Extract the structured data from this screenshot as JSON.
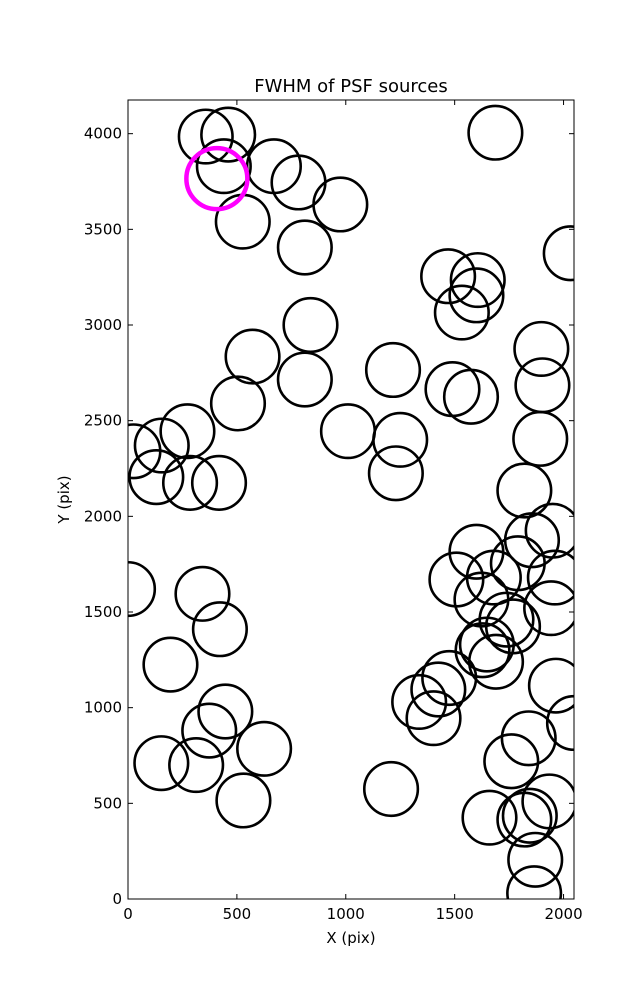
{
  "chart_data": {
    "type": "scatter",
    "title": "FWHM of PSF sources",
    "xlabel": "X (pix)",
    "ylabel": "Y (pix)",
    "xlim": [
      0,
      2048
    ],
    "ylim": [
      0,
      4176
    ],
    "xticks": [
      0,
      500,
      1000,
      1500,
      2000
    ],
    "yticks": [
      0,
      500,
      1000,
      1500,
      2000,
      2500,
      3000,
      3500,
      4000
    ],
    "grid": false,
    "marker": "open-circle",
    "colors": {
      "default": "#000000",
      "highlight": "#ff00ff"
    },
    "series": [
      {
        "marker_radius_data_units": 123,
        "points": [
          {
            "x": 357,
            "y": 3985
          },
          {
            "x": 460,
            "y": 3995
          },
          {
            "x": 1687,
            "y": 4005
          },
          {
            "x": 440,
            "y": 3830
          },
          {
            "x": 670,
            "y": 3830
          },
          {
            "x": 783,
            "y": 3745
          },
          {
            "x": 975,
            "y": 3630
          },
          {
            "x": 527,
            "y": 3540
          },
          {
            "x": 812,
            "y": 3405
          },
          {
            "x": 2033,
            "y": 3375
          },
          {
            "x": 1470,
            "y": 3255
          },
          {
            "x": 1606,
            "y": 3235
          },
          {
            "x": 1600,
            "y": 3155
          },
          {
            "x": 1533,
            "y": 3065
          },
          {
            "x": 838,
            "y": 3000
          },
          {
            "x": 1898,
            "y": 2875
          },
          {
            "x": 572,
            "y": 2835
          },
          {
            "x": 1217,
            "y": 2765
          },
          {
            "x": 812,
            "y": 2715
          },
          {
            "x": 1903,
            "y": 2685
          },
          {
            "x": 1490,
            "y": 2665
          },
          {
            "x": 1575,
            "y": 2625
          },
          {
            "x": 505,
            "y": 2590
          },
          {
            "x": 1010,
            "y": 2445
          },
          {
            "x": 273,
            "y": 2445
          },
          {
            "x": 1250,
            "y": 2400
          },
          {
            "x": 1893,
            "y": 2405
          },
          {
            "x": 155,
            "y": 2370
          },
          {
            "x": 25,
            "y": 2340
          },
          {
            "x": 1230,
            "y": 2225
          },
          {
            "x": 130,
            "y": 2205
          },
          {
            "x": 285,
            "y": 2175
          },
          {
            "x": 418,
            "y": 2175
          },
          {
            "x": 1820,
            "y": 2135
          },
          {
            "x": 1950,
            "y": 1925
          },
          {
            "x": 1855,
            "y": 1875
          },
          {
            "x": 1600,
            "y": 1815
          },
          {
            "x": 1790,
            "y": 1755
          },
          {
            "x": 1680,
            "y": 1680
          },
          {
            "x": 1960,
            "y": 1680
          },
          {
            "x": 1508,
            "y": 1670
          },
          {
            "x": 0,
            "y": 1620
          },
          {
            "x": 342,
            "y": 1595
          },
          {
            "x": 1623,
            "y": 1565
          },
          {
            "x": 1943,
            "y": 1520
          },
          {
            "x": 1738,
            "y": 1460
          },
          {
            "x": 1768,
            "y": 1425
          },
          {
            "x": 422,
            "y": 1410
          },
          {
            "x": 1648,
            "y": 1330
          },
          {
            "x": 1628,
            "y": 1300
          },
          {
            "x": 1690,
            "y": 1240
          },
          {
            "x": 195,
            "y": 1225
          },
          {
            "x": 1475,
            "y": 1155
          },
          {
            "x": 1965,
            "y": 1115
          },
          {
            "x": 1425,
            "y": 1095
          },
          {
            "x": 1337,
            "y": 1030
          },
          {
            "x": 447,
            "y": 980
          },
          {
            "x": 2048,
            "y": 920
          },
          {
            "x": 1403,
            "y": 945
          },
          {
            "x": 373,
            "y": 880
          },
          {
            "x": 1840,
            "y": 840
          },
          {
            "x": 625,
            "y": 785
          },
          {
            "x": 1760,
            "y": 720
          },
          {
            "x": 153,
            "y": 710
          },
          {
            "x": 313,
            "y": 700
          },
          {
            "x": 1208,
            "y": 575
          },
          {
            "x": 530,
            "y": 515
          },
          {
            "x": 1935,
            "y": 510
          },
          {
            "x": 1845,
            "y": 435
          },
          {
            "x": 1660,
            "y": 425
          },
          {
            "x": 1820,
            "y": 415
          },
          {
            "x": 1870,
            "y": 205
          },
          {
            "x": 1865,
            "y": 30
          }
        ]
      },
      {
        "name": "",
        "marker_radius_data_units": 140,
        "color": "#ff00ff",
        "points": [
          {
            "x": 408,
            "y": 3765
          }
        ]
      }
    ]
  }
}
